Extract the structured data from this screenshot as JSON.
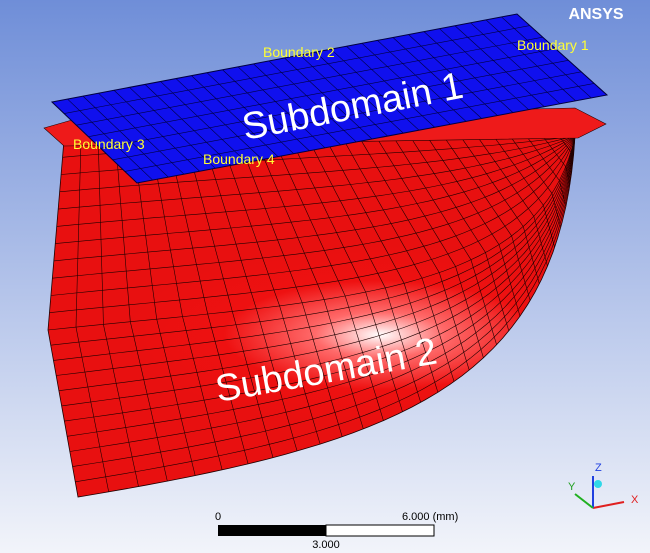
{
  "brand": "ANSYS",
  "labels": {
    "boundary_1": "Boundary 1",
    "boundary_2": "Boundary 2",
    "boundary_3": "Boundary 3",
    "boundary_4": "Boundary 4",
    "subdomain_1": "Subdomain 1",
    "subdomain_2": "Subdomain 2"
  },
  "scale_bar": {
    "start": "0",
    "end": "6.000 (mm)",
    "middle": "3.000"
  },
  "triad": {
    "x": "X",
    "y": "Y",
    "z": "Z"
  }
}
